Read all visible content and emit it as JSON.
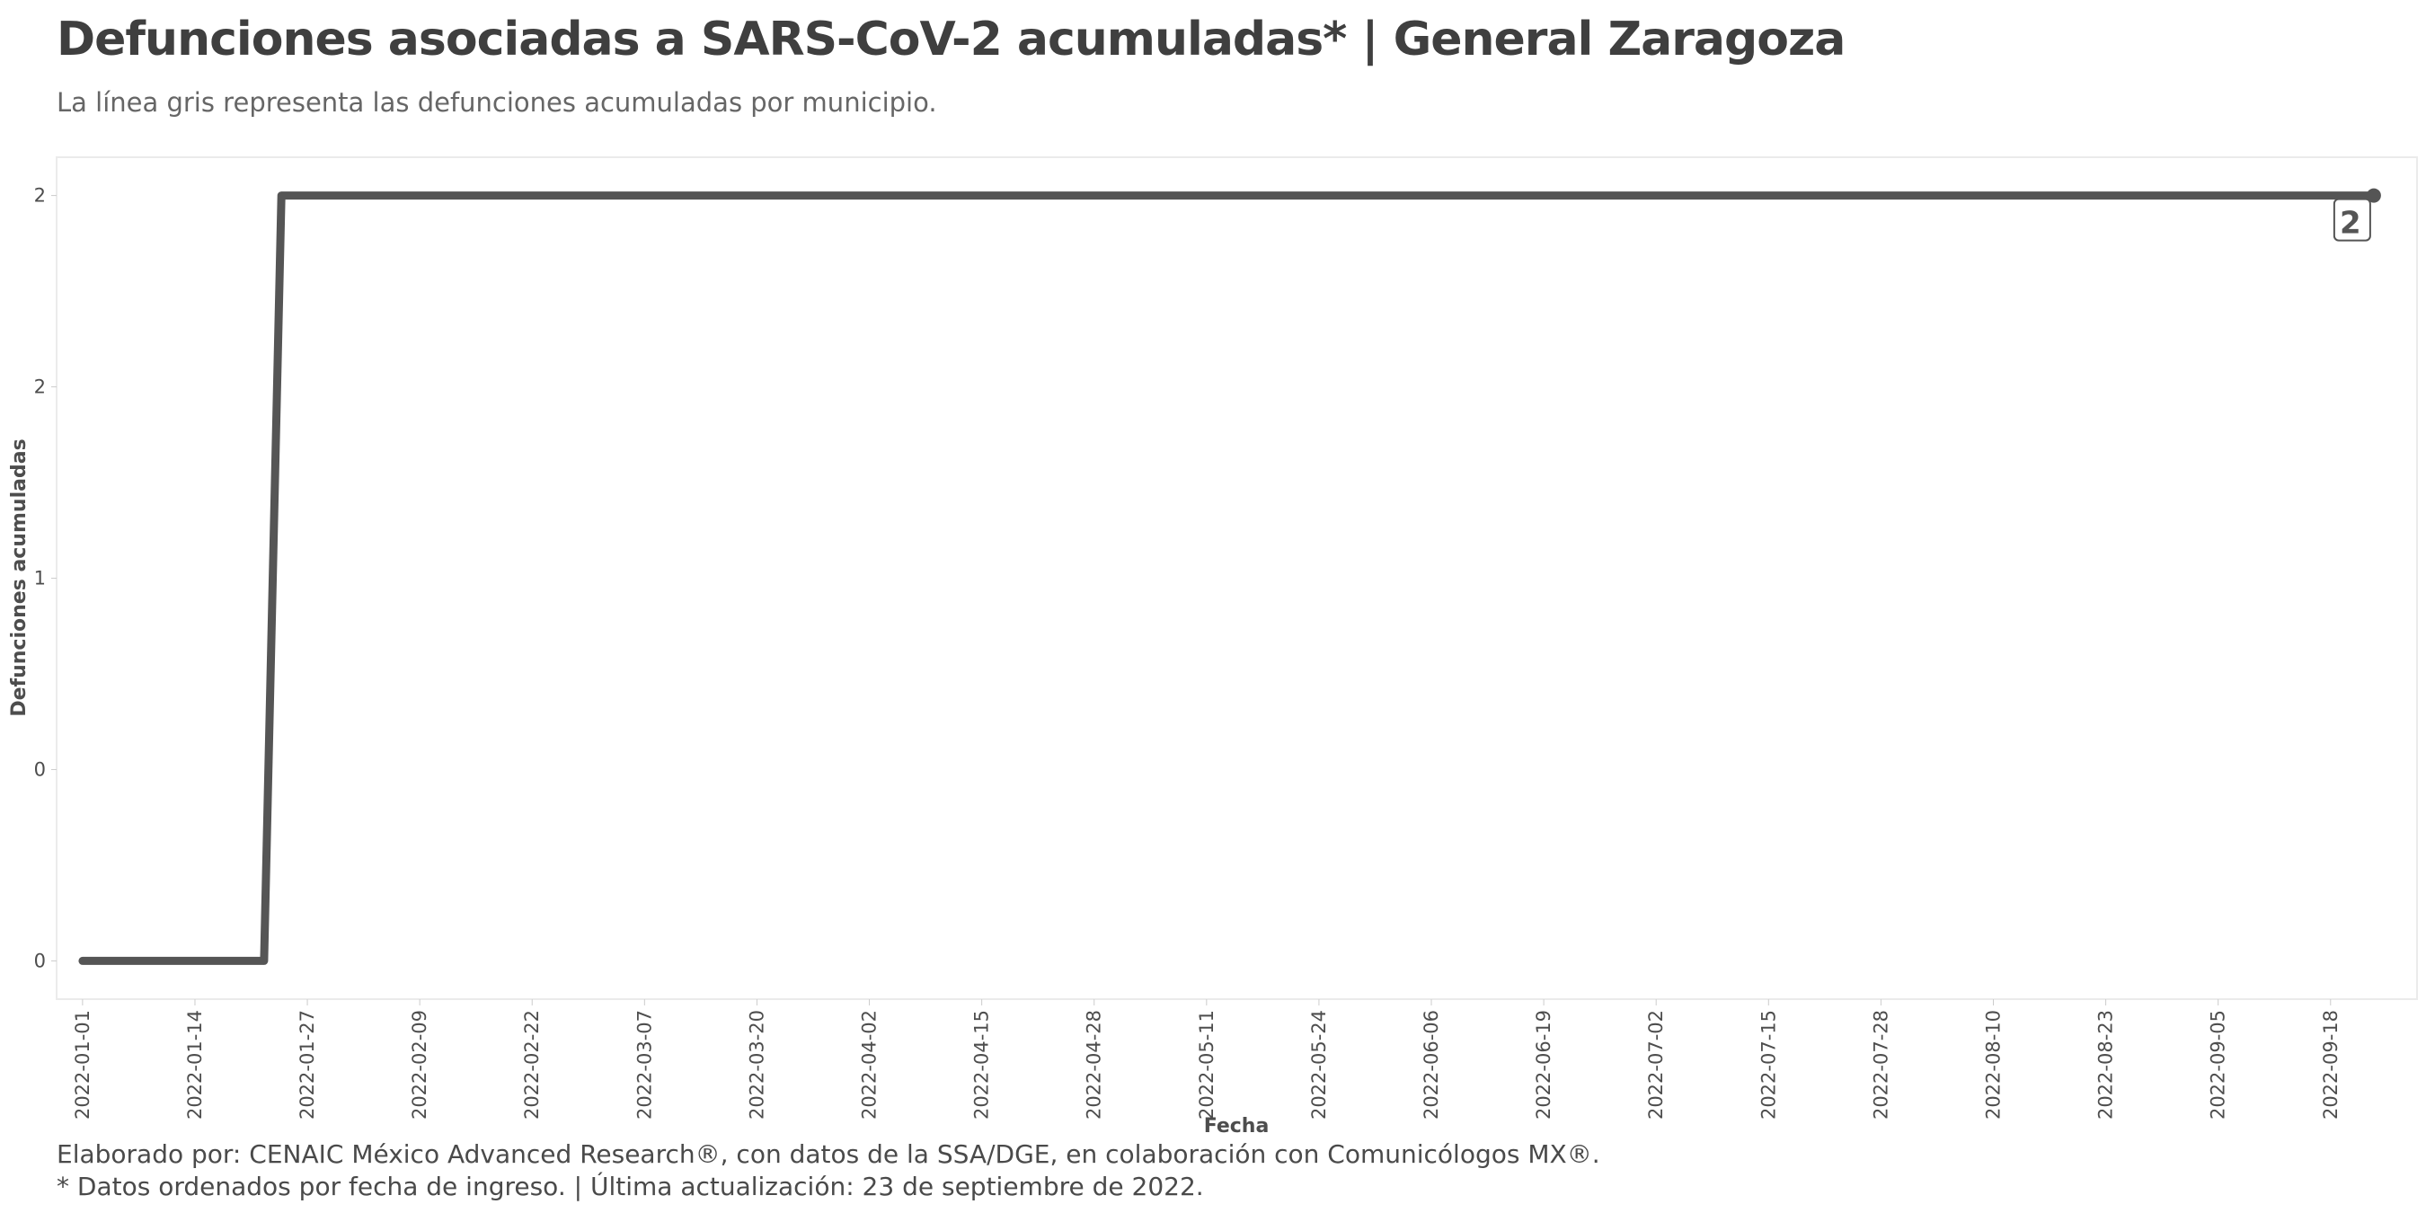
{
  "header": {
    "title": "Defunciones asociadas a SARS-CoV-2 acumuladas* | General Zaragoza",
    "subtitle": "La línea gris representa las defunciones acumuladas por municipio."
  },
  "footer": {
    "credit": "Elaborado por: CENAIC México Advanced Research®, con datos de la SSA/DGE, en colaboración con Comunicólogos MX®.",
    "note": "* Datos ordenados por fecha de ingreso. | Última actualización: 23 de septiembre de 2022."
  },
  "chart_data": {
    "type": "line",
    "title": "Defunciones asociadas a SARS-CoV-2 acumuladas* | General Zaragoza",
    "subtitle": "La línea gris representa las defunciones acumuladas por municipio.",
    "xlabel": "Fecha",
    "ylabel": "Defunciones acumuladas",
    "x_range": [
      "2021-12-29",
      "2022-09-28"
    ],
    "ylim": [
      -0.1,
      2.1
    ],
    "y_ticks": [
      0,
      0.5,
      1,
      1.5,
      2
    ],
    "y_tick_labels": [
      "0",
      "0",
      "1",
      "2",
      "2"
    ],
    "x_tick_labels": [
      "2022-01-01",
      "2022-01-14",
      "2022-01-27",
      "2022-02-09",
      "2022-02-22",
      "2022-03-07",
      "2022-03-20",
      "2022-04-02",
      "2022-04-15",
      "2022-04-28",
      "2022-05-11",
      "2022-05-24",
      "2022-06-06",
      "2022-06-19",
      "2022-07-02",
      "2022-07-15",
      "2022-07-28",
      "2022-08-10",
      "2022-08-23",
      "2022-09-05",
      "2022-09-18"
    ],
    "grid": false,
    "line_color": "#555555",
    "series": [
      {
        "points": [
          {
            "x": "2022-01-01",
            "y": 0
          },
          {
            "x": "2022-01-22",
            "y": 0
          },
          {
            "x": "2022-01-24",
            "y": 2
          },
          {
            "x": "2022-09-23",
            "y": 2
          }
        ]
      }
    ],
    "end_label": "2"
  }
}
